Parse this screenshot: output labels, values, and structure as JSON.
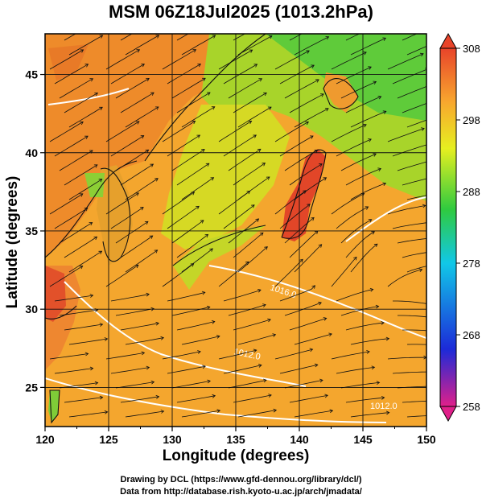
{
  "title": "MSM 06Z18Jul2025 (1013.2hPa)",
  "map": {
    "xlabel": "Longitude (degrees)",
    "ylabel": "Latitude  (degrees)",
    "lon_ticks": [
      "120",
      "125",
      "130",
      "135",
      "140",
      "145",
      "150"
    ],
    "lat_ticks": [
      "25",
      "30",
      "35",
      "40",
      "45"
    ],
    "lon_range": [
      120,
      150
    ],
    "lat_range": [
      22.5,
      47.6
    ],
    "contour_labels": [
      "1016.0",
      "1012.0",
      "1012.0"
    ],
    "colorbar": {
      "ticks": [
        "308",
        "298",
        "288",
        "278",
        "268",
        "258"
      ],
      "range": [
        258,
        308
      ],
      "colors": [
        "#e0208a",
        "#1c2ad8",
        "#11c8e8",
        "#2fca3f",
        "#e6ef20",
        "#f8a72e",
        "#e8442a"
      ]
    }
  },
  "credit": {
    "line1": "Drawing by DCL (https://www.gfd-dennou.org/library/dcl/)",
    "line2": "Data from http://database.rish.kyoto-u.ac.jp/arch/jmadata/"
  }
}
